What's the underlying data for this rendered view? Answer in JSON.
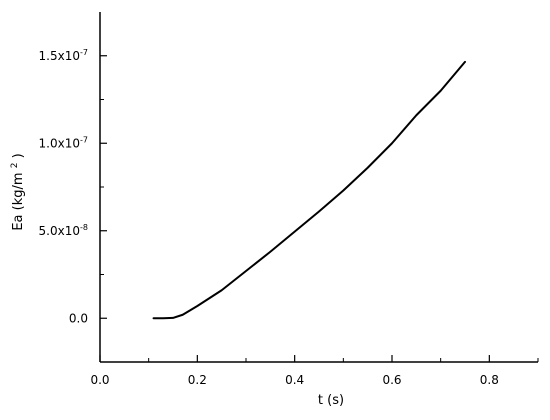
{
  "chart_data": {
    "type": "line",
    "title": "",
    "xlabel": "t (s)",
    "ylabel": {
      "base": "Ea (kg/m",
      "superscript": "2",
      "suffix": ")"
    },
    "xlim": [
      0,
      0.9
    ],
    "ylim": [
      -2.5e-08,
      1.75e-07
    ],
    "grid": false,
    "x_ticks": [
      {
        "value": 0.0,
        "label": "0.0"
      },
      {
        "value": 0.2,
        "label": "0.2"
      },
      {
        "value": 0.4,
        "label": "0.4"
      },
      {
        "value": 0.6,
        "label": "0.6"
      },
      {
        "value": 0.8,
        "label": "0.8"
      }
    ],
    "y_ticks": [
      {
        "value": 0,
        "label": "0.0",
        "exponent": ""
      },
      {
        "value": 5e-08,
        "label": "5.0x10",
        "exponent": "-8"
      },
      {
        "value": 1e-07,
        "label": "1.0x10",
        "exponent": "-7"
      },
      {
        "value": 1.5e-07,
        "label": "1.5x10",
        "exponent": "-7"
      }
    ],
    "series": [
      {
        "color": "#000000",
        "x": [
          0.11,
          0.13,
          0.15,
          0.17,
          0.2,
          0.25,
          0.3,
          0.35,
          0.4,
          0.45,
          0.5,
          0.55,
          0.6,
          0.65,
          0.7,
          0.75
        ],
        "y": [
          0,
          0,
          2e-10,
          2e-09,
          7e-09,
          1.6e-08,
          2.7e-08,
          3.8e-08,
          4.95e-08,
          6.1e-08,
          7.3e-08,
          8.6e-08,
          1e-07,
          1.16e-07,
          1.3e-07,
          1.465e-07
        ]
      }
    ]
  }
}
